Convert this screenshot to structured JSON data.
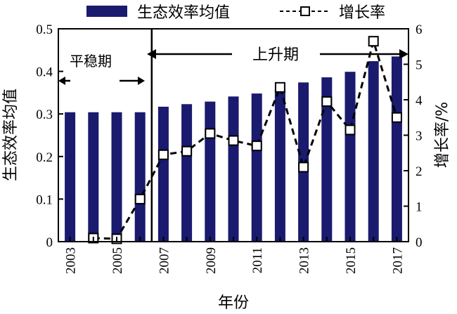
{
  "chart_data": {
    "type": "bar+line",
    "categories": [
      "2003",
      "2004",
      "2005",
      "2006",
      "2007",
      "2008",
      "2009",
      "2010",
      "2011",
      "2012",
      "2013",
      "2014",
      "2015",
      "2016",
      "2017"
    ],
    "x_tick_labels": [
      "2003",
      "2005",
      "2007",
      "2009",
      "2011",
      "2013",
      "2015",
      "2017"
    ],
    "series": [
      {
        "name": "生态效率均值",
        "kind": "bar",
        "axis": "left",
        "color": "#1a1a6e",
        "values": [
          0.304,
          0.304,
          0.304,
          0.304,
          0.317,
          0.323,
          0.329,
          0.341,
          0.348,
          0.357,
          0.374,
          0.386,
          0.399,
          0.424,
          0.435
        ]
      },
      {
        "name": "增长率",
        "kind": "line",
        "axis": "right",
        "color": "#000000",
        "style": "dashed",
        "marker": "open-square",
        "values": [
          null,
          0.1,
          0.08,
          1.2,
          2.45,
          2.55,
          3.05,
          2.85,
          2.7,
          4.35,
          2.1,
          3.95,
          3.15,
          5.65,
          3.5
        ]
      }
    ],
    "xlabel": "年份",
    "ylabel_left": "生态效率均值",
    "ylabel_right": "增长率/%",
    "ylim_left": [
      0,
      0.5
    ],
    "ylim_right": [
      0,
      6
    ],
    "y_ticks_left": [
      "0",
      "0.1",
      "0.2",
      "0.3",
      "0.4",
      "0.5"
    ],
    "y_ticks_right": [
      "0",
      "1",
      "2",
      "3",
      "4",
      "5",
      "6"
    ],
    "grid": false,
    "legend_position": "top",
    "annotations": [
      {
        "text": "平稳期",
        "from": "2002.5",
        "to": "2006",
        "row": "upper-left"
      },
      {
        "text": "上升期",
        "from": "2006",
        "to": "2017.5",
        "row": "top"
      }
    ],
    "divider_year": "2006"
  }
}
